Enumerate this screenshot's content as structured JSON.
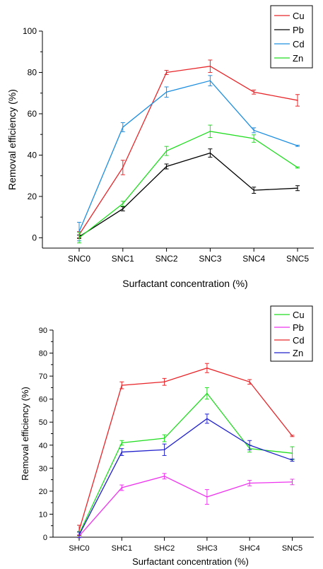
{
  "chart_data": [
    {
      "type": "line",
      "categories": [
        "SNC0",
        "SNC1",
        "SNC2",
        "SNC3",
        "SNC4",
        "SNC5"
      ],
      "xlabel": "Surfactant concentration (%)",
      "ylabel": "Removal efficiency (%)",
      "ylim": [
        -5,
        100
      ],
      "yticks": [
        0,
        20,
        40,
        60,
        80,
        100
      ],
      "grid": false,
      "legend_position": "top-right",
      "series": [
        {
          "name": "Cu",
          "color": "#e8262a",
          "values": [
            1.5,
            34,
            80,
            83,
            70.5,
            66.5
          ],
          "errors": [
            1.5,
            3.5,
            1,
            3,
            1,
            2.8
          ]
        },
        {
          "name": "Pb",
          "color": "#000000",
          "values": [
            0.5,
            14,
            34.5,
            41,
            23,
            24
          ],
          "errors": [
            0.8,
            1,
            1.2,
            2,
            1.5,
            1.2
          ]
        },
        {
          "name": "Cd",
          "color": "#1e8fe0",
          "values": [
            3,
            53.5,
            70.5,
            76,
            52,
            44.5
          ],
          "errors": [
            4.5,
            2.2,
            2.5,
            2.5,
            1.2,
            0.3
          ]
        },
        {
          "name": "Zn",
          "color": "#22dd22",
          "values": [
            0,
            16.5,
            42,
            51.5,
            48,
            34
          ],
          "errors": [
            2.5,
            1.2,
            2.2,
            3,
            1.8,
            0.3
          ]
        }
      ]
    },
    {
      "type": "line",
      "categories": [
        "SHC0",
        "SHC1",
        "SHC2",
        "SHC3",
        "SHC4",
        "SNC5"
      ],
      "xlabel": "Surfactant concentration (%)",
      "ylabel": "Removal efficiency (%)",
      "ylim": [
        0,
        90
      ],
      "yticks": [
        0,
        10,
        20,
        30,
        40,
        50,
        60,
        70,
        80,
        90
      ],
      "grid": false,
      "legend_position": "top-right",
      "series": [
        {
          "name": "Cu",
          "color": "#22dd22",
          "values": [
            1.5,
            41,
            43,
            62.5,
            38.5,
            36.5
          ],
          "errors": [
            1,
            1,
            1.5,
            2.5,
            1.5,
            2.8
          ]
        },
        {
          "name": "Pb",
          "color": "#ee33ee",
          "values": [
            0.5,
            21.5,
            26.5,
            17.5,
            23.5,
            24
          ],
          "errors": [
            0.5,
            1.2,
            1.2,
            3.2,
            1.2,
            1.2
          ]
        },
        {
          "name": "Cd",
          "color": "#e8262a",
          "values": [
            3,
            66,
            67.5,
            73.5,
            67.5,
            44
          ],
          "errors": [
            2.2,
            1.5,
            1.5,
            2,
            1,
            0.3
          ]
        },
        {
          "name": "Zn",
          "color": "#2222cc",
          "values": [
            1,
            37,
            38,
            51.5,
            40,
            33.5
          ],
          "errors": [
            1.2,
            1.5,
            2.5,
            2,
            2,
            0.5
          ]
        }
      ]
    }
  ]
}
